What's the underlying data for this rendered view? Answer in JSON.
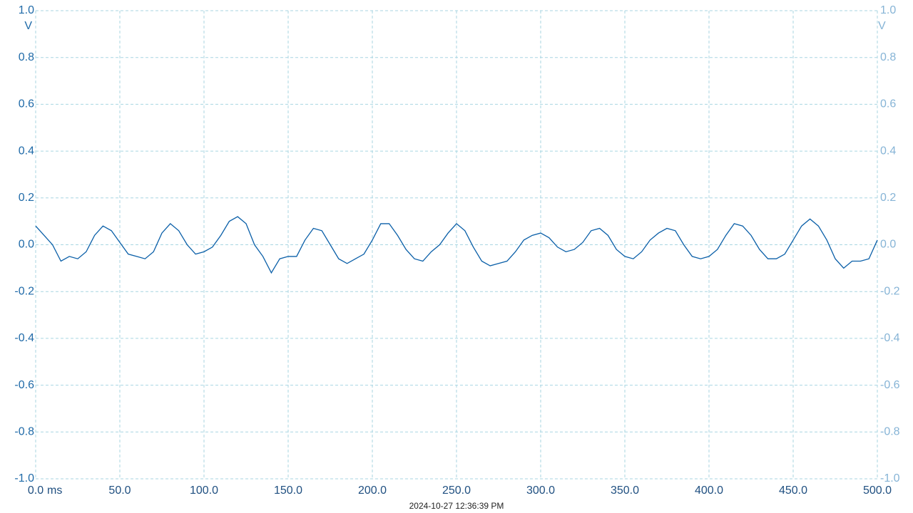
{
  "chart_data": {
    "type": "line",
    "y_unit": "V",
    "x_unit": "ms",
    "timestamp": "2024-10-27 12:36:39 PM",
    "color": "#0a5fa8",
    "grid": true,
    "xlim": [
      0,
      500
    ],
    "ylim": [
      -1,
      1
    ],
    "xticks": [
      {
        "value": 0,
        "label": "0.0"
      },
      {
        "value": 50,
        "label": "50.0"
      },
      {
        "value": 100,
        "label": "100.0"
      },
      {
        "value": 150,
        "label": "150.0"
      },
      {
        "value": 200,
        "label": "200.0"
      },
      {
        "value": 250,
        "label": "250.0"
      },
      {
        "value": 300,
        "label": "300.0"
      },
      {
        "value": 350,
        "label": "350.0"
      },
      {
        "value": 400,
        "label": "400.0"
      },
      {
        "value": 450,
        "label": "450.0"
      },
      {
        "value": 500,
        "label": "500.0"
      }
    ],
    "yticks": [
      {
        "value": 1,
        "label": "1.0"
      },
      {
        "value": 0.8,
        "label": "0.8"
      },
      {
        "value": 0.6,
        "label": "0.6"
      },
      {
        "value": 0.4,
        "label": "0.4"
      },
      {
        "value": 0.2,
        "label": "0.2"
      },
      {
        "value": 0,
        "label": "0.0"
      },
      {
        "value": -0.2,
        "label": "-0.2"
      },
      {
        "value": -0.4,
        "label": "-0.4"
      },
      {
        "value": -0.6,
        "label": "-0.6"
      },
      {
        "value": -0.8,
        "label": "-0.8"
      },
      {
        "value": -1,
        "label": "-1.0"
      }
    ],
    "x": [
      0,
      5,
      10,
      15,
      20,
      25,
      30,
      35,
      40,
      45,
      50,
      55,
      60,
      65,
      70,
      75,
      80,
      85,
      90,
      95,
      100,
      105,
      110,
      115,
      120,
      125,
      130,
      135,
      140,
      145,
      150,
      155,
      160,
      165,
      170,
      175,
      180,
      185,
      190,
      195,
      200,
      205,
      210,
      215,
      220,
      225,
      230,
      235,
      240,
      245,
      250,
      255,
      260,
      265,
      270,
      275,
      280,
      285,
      290,
      295,
      300,
      305,
      310,
      315,
      320,
      325,
      330,
      335,
      340,
      345,
      350,
      355,
      360,
      365,
      370,
      375,
      380,
      385,
      390,
      395,
      400,
      405,
      410,
      415,
      420,
      425,
      430,
      435,
      440,
      445,
      450,
      455,
      460,
      465,
      470,
      475,
      480,
      485,
      490,
      495,
      500
    ],
    "values": [
      0.08,
      0.04,
      0.0,
      -0.07,
      -0.05,
      -0.06,
      -0.03,
      0.04,
      0.08,
      0.06,
      0.01,
      -0.04,
      -0.05,
      -0.06,
      -0.03,
      0.05,
      0.09,
      0.06,
      0.0,
      -0.04,
      -0.03,
      -0.01,
      0.04,
      0.1,
      0.12,
      0.09,
      0.0,
      -0.05,
      -0.12,
      -0.06,
      -0.05,
      -0.05,
      0.02,
      0.07,
      0.06,
      0.0,
      -0.06,
      -0.08,
      -0.06,
      -0.04,
      0.02,
      0.09,
      0.09,
      0.04,
      -0.02,
      -0.06,
      -0.07,
      -0.03,
      0.0,
      0.05,
      0.09,
      0.06,
      -0.01,
      -0.07,
      -0.09,
      -0.08,
      -0.07,
      -0.03,
      0.02,
      0.04,
      0.05,
      0.03,
      -0.01,
      -0.03,
      -0.02,
      0.01,
      0.06,
      0.07,
      0.04,
      -0.02,
      -0.05,
      -0.06,
      -0.03,
      0.02,
      0.05,
      0.07,
      0.06,
      0.0,
      -0.05,
      -0.06,
      -0.05,
      -0.02,
      0.04,
      0.09,
      0.08,
      0.04,
      -0.02,
      -0.06,
      -0.06,
      -0.04,
      0.02,
      0.08,
      0.11,
      0.08,
      0.02,
      -0.06,
      -0.1,
      -0.07,
      -0.07,
      -0.06,
      0.02
    ]
  }
}
